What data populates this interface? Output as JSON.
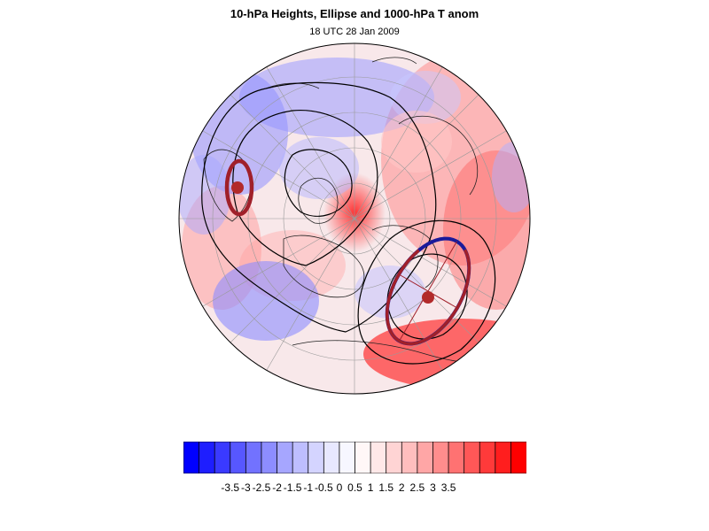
{
  "title": "10-hPa Heights, Ellipse and 1000-hPa T anom",
  "subtitle": "18 UTC 28 Jan 2009",
  "colorbar": {
    "labels": [
      "-3.5",
      "-3",
      "-2.5",
      "-2",
      "-1.5",
      "-1",
      "-0.5",
      "0",
      "0.5",
      "1",
      "1.5",
      "2",
      "2.5",
      "3",
      "3.5"
    ],
    "colors": [
      "#0000ff",
      "#1e1eff",
      "#3a3aff",
      "#5757ff",
      "#7272ff",
      "#8d8dff",
      "#a6a6ff",
      "#bebeff",
      "#d4d4ff",
      "#e8e8ff",
      "#f7f7ff",
      "#fff7f7",
      "#ffe8e8",
      "#ffd4d4",
      "#ffbebe",
      "#ffa6a6",
      "#ff8d8d",
      "#ff7272",
      "#ff5757",
      "#ff3a3a",
      "#ff1e1e",
      "#ff0000"
    ]
  },
  "legend_colors": {
    "ellipse": "#a0202a",
    "ellipse_inner": "#1a1a9a",
    "contour": "#000000"
  }
}
